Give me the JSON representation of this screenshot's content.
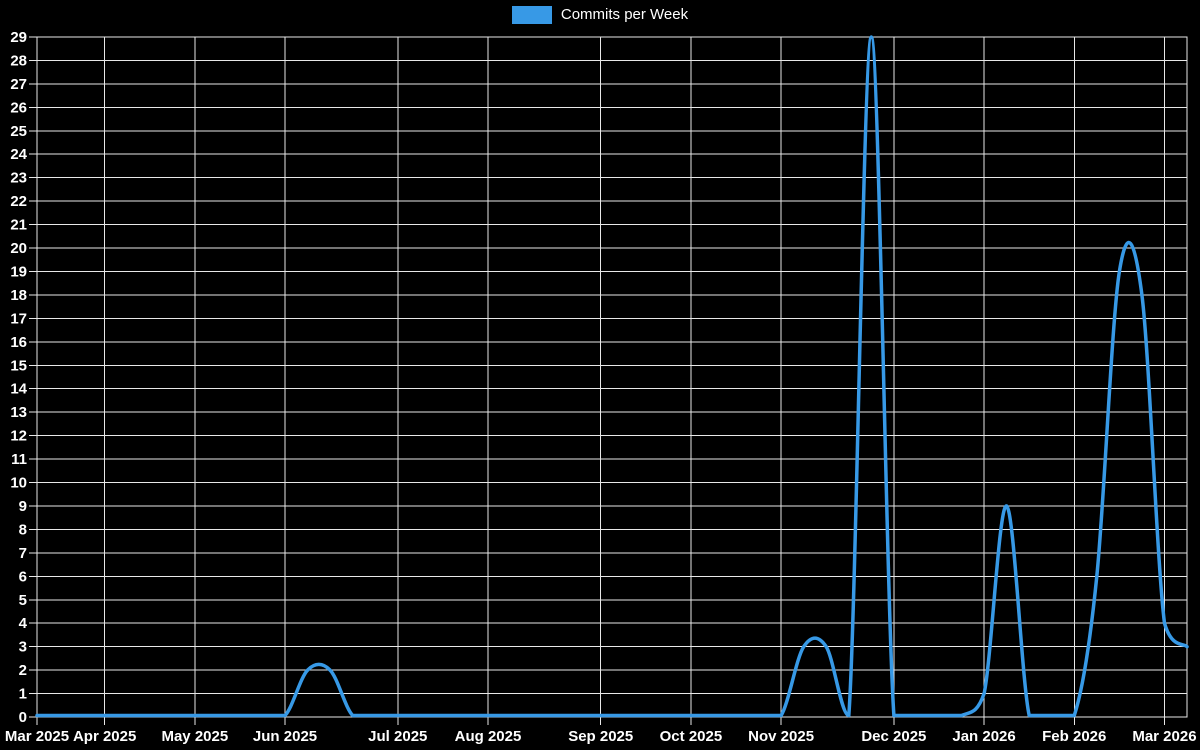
{
  "legend": {
    "label": "Commits per Week",
    "swatch_color": "#3799e6"
  },
  "colors": {
    "background": "#000000",
    "grid": "#e8e8e8",
    "text": "#ffffff",
    "line": "#3799e6"
  },
  "chart_data": {
    "type": "line",
    "title": "Commits per Week",
    "xlabel": "",
    "ylabel": "",
    "grid": true,
    "legend_position": "top-center",
    "smoothing": "spline",
    "x_unit": "week",
    "ylim": [
      0,
      29
    ],
    "y_ticks": [
      0,
      1,
      2,
      3,
      4,
      5,
      6,
      7,
      8,
      9,
      10,
      11,
      12,
      13,
      14,
      15,
      16,
      17,
      18,
      19,
      20,
      21,
      22,
      23,
      24,
      25,
      26,
      27,
      28,
      29
    ],
    "x_ticks": [
      {
        "label": "Mar 2025",
        "week": 0
      },
      {
        "label": "Apr 2025",
        "week": 3
      },
      {
        "label": "May 2025",
        "week": 7
      },
      {
        "label": "Jun 2025",
        "week": 11
      },
      {
        "label": "Jul 2025",
        "week": 16
      },
      {
        "label": "Aug 2025",
        "week": 20
      },
      {
        "label": "Sep 2025",
        "week": 25
      },
      {
        "label": "Oct 2025",
        "week": 29
      },
      {
        "label": "Nov 2025",
        "week": 33
      },
      {
        "label": "Dec 2025",
        "week": 38
      },
      {
        "label": "Jan 2026",
        "week": 42
      },
      {
        "label": "Feb 2026",
        "week": 46
      },
      {
        "label": "Mar 2026",
        "week": 50
      }
    ],
    "series": [
      {
        "name": "Commits per Week",
        "color": "#3799e6",
        "values": [
          0,
          0,
          0,
          0,
          0,
          0,
          0,
          0,
          0,
          0,
          0,
          0,
          2,
          2,
          0,
          0,
          0,
          0,
          0,
          0,
          0,
          0,
          0,
          0,
          0,
          0,
          0,
          0,
          0,
          0,
          0,
          0,
          0,
          0,
          3,
          3,
          0,
          29,
          0,
          0,
          0,
          0,
          1,
          9,
          0,
          0,
          0,
          6,
          19,
          18,
          4,
          3
        ]
      }
    ]
  }
}
